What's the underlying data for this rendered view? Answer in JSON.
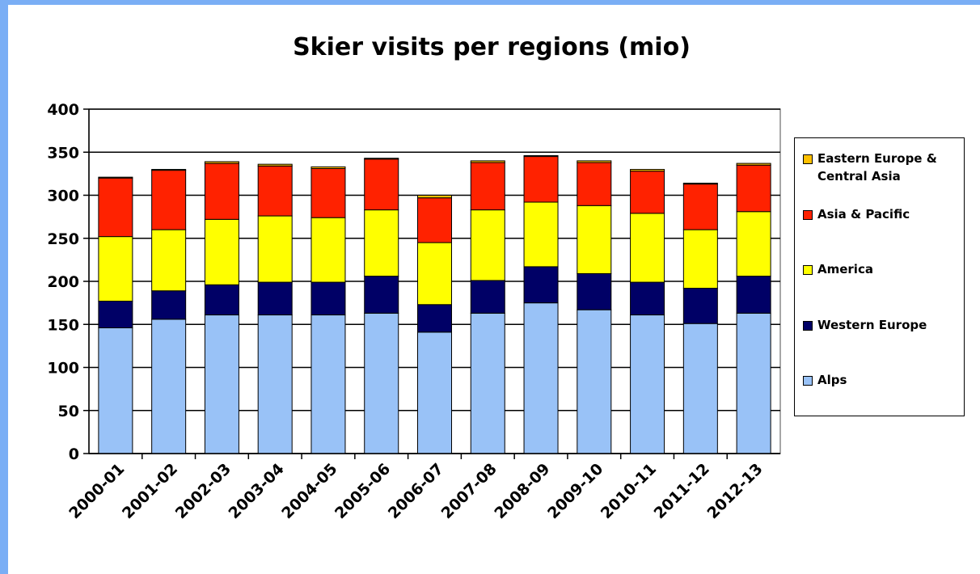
{
  "chart_data": {
    "type": "stacked_bar",
    "title": "Skier visits per regions (mio)",
    "categories": [
      "2000-01",
      "2001-02",
      "2002-03",
      "2003-04",
      "2004-05",
      "2005-06",
      "2006-07",
      "2007-08",
      "2008-09",
      "2009-10",
      "2010-11",
      "2011-12",
      "2012-13"
    ],
    "series": [
      {
        "name": "Alps",
        "color": "#99c2f7",
        "values": [
          146,
          156,
          161,
          161,
          161,
          163,
          141,
          163,
          175,
          167,
          161,
          151,
          163
        ]
      },
      {
        "name": "Western Europe",
        "color": "#000066",
        "values": [
          31,
          33,
          35,
          38,
          38,
          43,
          32,
          38,
          42,
          42,
          38,
          41,
          43
        ]
      },
      {
        "name": "America",
        "color": "#ffff00",
        "values": [
          75,
          71,
          76,
          77,
          75,
          77,
          72,
          82,
          75,
          79,
          80,
          68,
          75
        ]
      },
      {
        "name": "Asia & Pacific",
        "color": "#ff2200",
        "values": [
          68,
          69,
          65,
          58,
          57,
          59,
          52,
          55,
          53,
          50,
          49,
          53,
          54
        ]
      },
      {
        "name": "Eastern Europe & Central Asia",
        "color": "#ffc000",
        "values": [
          1,
          1,
          2,
          2,
          2,
          1,
          3,
          2,
          1,
          2,
          2,
          1,
          2
        ]
      }
    ],
    "ylim": [
      0,
      400
    ],
    "yticks": [
      0,
      50,
      100,
      150,
      200,
      250,
      300,
      350,
      400
    ],
    "grid": true,
    "legend": "right"
  }
}
